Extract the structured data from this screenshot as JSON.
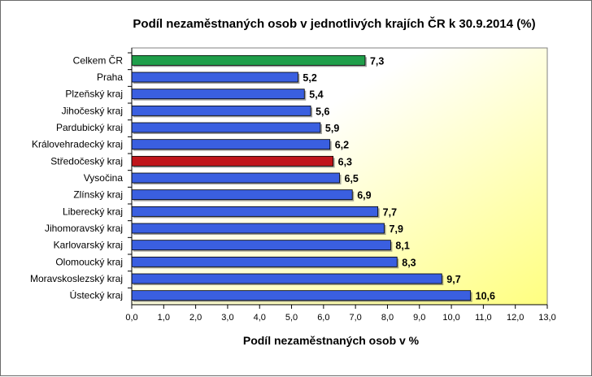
{
  "chart_data": {
    "type": "bar",
    "orientation": "horizontal",
    "title": "Podíl nezaměstnaných osob v jednotlivých krajích ČR k 30.9.2014 (%)",
    "xlabel": "Podíl nezaměstnaných osob v %",
    "ylabel": "",
    "xlim": [
      0,
      13
    ],
    "xticks": [
      "0,0",
      "1,0",
      "2,0",
      "3,0",
      "4,0",
      "5,0",
      "6,0",
      "7,0",
      "8,0",
      "9,0",
      "10,0",
      "11,0",
      "12,0",
      "13,0"
    ],
    "categories": [
      "Celkem ČR",
      "Praha",
      "Plzeňský kraj",
      "Jihočeský kraj",
      "Pardubický kraj",
      "Královehradecký kraj",
      "Středočeský kraj",
      "Vysočina",
      "Zlínský kraj",
      "Liberecký kraj",
      "Jihomoravský kraj",
      "Karlovarský kraj",
      "Olomoucký kraj",
      "Moravskoslezský kraj",
      "Ústecký kraj"
    ],
    "values": [
      7.3,
      5.2,
      5.4,
      5.6,
      5.9,
      6.2,
      6.3,
      6.5,
      6.9,
      7.7,
      7.9,
      8.1,
      8.3,
      9.7,
      10.6
    ],
    "value_labels": [
      "7,3",
      "5,2",
      "5,4",
      "5,6",
      "5,9",
      "6,2",
      "6,3",
      "6,5",
      "6,9",
      "7,7",
      "7,9",
      "8,1",
      "8,3",
      "9,7",
      "10,6"
    ],
    "bar_colors": [
      "#1f9e4a",
      "#3a5fe0",
      "#3a5fe0",
      "#3a5fe0",
      "#3a5fe0",
      "#3a5fe0",
      "#c0151b",
      "#3a5fe0",
      "#3a5fe0",
      "#3a5fe0",
      "#3a5fe0",
      "#3a5fe0",
      "#3a5fe0",
      "#3a5fe0",
      "#3a5fe0"
    ],
    "plot_background": [
      "#ffffff",
      "#ffff80"
    ],
    "grid": false,
    "legend": "none"
  }
}
